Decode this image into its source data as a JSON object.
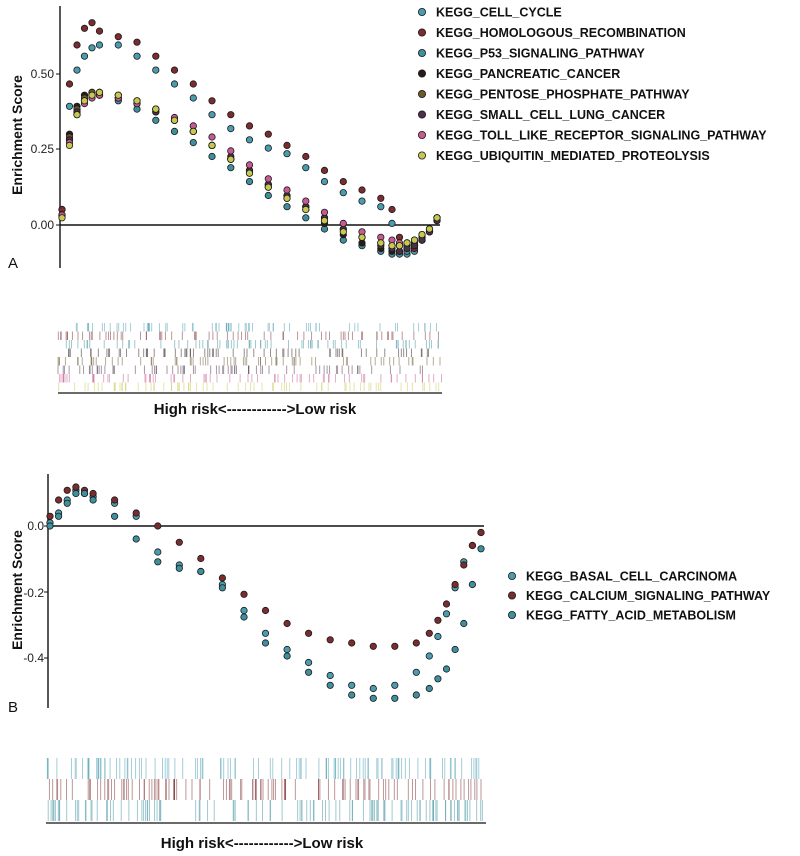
{
  "chart_data": [
    {
      "type": "scatter",
      "panel_label": "A",
      "ylabel": "Enrichment Score",
      "xlabel": "High risk<------------>Low risk",
      "yticks": [
        "0.00",
        "0.25",
        "0.50"
      ],
      "ylim": [
        -0.16,
        0.78
      ],
      "xlim": [
        0,
        100
      ],
      "grid": false,
      "zero_line": true,
      "legend_position": "top-right",
      "x": [
        0,
        2,
        4,
        6,
        8,
        10,
        15,
        20,
        25,
        30,
        35,
        40,
        45,
        50,
        55,
        60,
        65,
        70,
        75,
        80,
        85,
        88,
        90,
        92,
        94,
        96,
        98,
        100
      ],
      "series": [
        {
          "name": "KEGG_CELL_CYCLE",
          "color": "#4a9db0",
          "values": [
            0.05,
            0.42,
            0.55,
            0.6,
            0.63,
            0.64,
            0.64,
            0.6,
            0.55,
            0.5,
            0.45,
            0.39,
            0.34,
            0.3,
            0.27,
            0.25,
            0.2,
            0.15,
            0.11,
            0.08,
            0.06,
            0.0,
            -0.08,
            -0.11,
            -0.1,
            -0.06,
            -0.02,
            0.02
          ]
        },
        {
          "name": "KEGG_HOMOLOGOUS_RECOMBINATION",
          "color": "#7a2c2e",
          "values": [
            0.05,
            0.5,
            0.64,
            0.7,
            0.72,
            0.69,
            0.67,
            0.65,
            0.6,
            0.55,
            0.5,
            0.44,
            0.39,
            0.35,
            0.32,
            0.28,
            0.24,
            0.19,
            0.15,
            0.12,
            0.09,
            0.05,
            -0.05,
            -0.09,
            -0.09,
            -0.06,
            -0.03,
            0.02
          ]
        },
        {
          "name": "KEGG_P53_SIGNALING_PATHWAY",
          "color": "#3f8f9e",
          "values": [
            0.03,
            0.3,
            0.4,
            0.44,
            0.46,
            0.46,
            0.44,
            0.41,
            0.37,
            0.33,
            0.29,
            0.24,
            0.2,
            0.15,
            0.1,
            0.06,
            0.02,
            -0.02,
            -0.06,
            -0.08,
            -0.1,
            -0.11,
            -0.11,
            -0.1,
            -0.08,
            -0.06,
            -0.03,
            0.01
          ]
        },
        {
          "name": "KEGG_PANCREATIC_CANCER",
          "color": "#2b1a1a",
          "values": [
            0.03,
            0.32,
            0.42,
            0.46,
            0.47,
            0.47,
            0.45,
            0.43,
            0.4,
            0.37,
            0.33,
            0.28,
            0.23,
            0.18,
            0.13,
            0.09,
            0.05,
            0.0,
            -0.04,
            -0.07,
            -0.09,
            -0.1,
            -0.1,
            -0.09,
            -0.08,
            -0.06,
            -0.03,
            0.01
          ]
        },
        {
          "name": "KEGG_PENTOSE_PHOSPHATE_PATHWAY",
          "color": "#6b5a2e",
          "values": [
            0.03,
            0.31,
            0.41,
            0.45,
            0.47,
            0.47,
            0.46,
            0.44,
            0.41,
            0.37,
            0.33,
            0.28,
            0.23,
            0.19,
            0.14,
            0.1,
            0.06,
            0.02,
            -0.02,
            -0.05,
            -0.07,
            -0.08,
            -0.08,
            -0.08,
            -0.07,
            -0.05,
            -0.02,
            0.02
          ]
        },
        {
          "name": "KEGG_SMALL_CELL_LUNG_CANCER",
          "color": "#4a3048",
          "values": [
            0.03,
            0.3,
            0.4,
            0.44,
            0.46,
            0.46,
            0.45,
            0.43,
            0.4,
            0.37,
            0.33,
            0.28,
            0.24,
            0.19,
            0.14,
            0.1,
            0.06,
            0.02,
            -0.02,
            -0.05,
            -0.08,
            -0.09,
            -0.1,
            -0.09,
            -0.08,
            -0.06,
            -0.03,
            0.01
          ]
        },
        {
          "name": "KEGG_TOLL_LIKE_RECEPTOR_SIGNALING_PATHWAY",
          "color": "#c85a92",
          "values": [
            0.03,
            0.29,
            0.39,
            0.43,
            0.45,
            0.46,
            0.45,
            0.43,
            0.41,
            0.38,
            0.35,
            0.31,
            0.26,
            0.21,
            0.16,
            0.12,
            0.08,
            0.04,
            0.0,
            -0.03,
            -0.05,
            -0.06,
            -0.07,
            -0.07,
            -0.06,
            -0.04,
            -0.02,
            0.02
          ]
        },
        {
          "name": "KEGG_UBIQUITIN_MEDIATED_PROTEOLYSIS",
          "color": "#c8c850",
          "values": [
            0.02,
            0.28,
            0.39,
            0.44,
            0.46,
            0.47,
            0.46,
            0.44,
            0.41,
            0.37,
            0.33,
            0.28,
            0.23,
            0.18,
            0.13,
            0.09,
            0.05,
            0.01,
            -0.03,
            -0.05,
            -0.07,
            -0.08,
            -0.08,
            -0.07,
            -0.06,
            -0.04,
            -0.02,
            0.02
          ]
        }
      ]
    },
    {
      "type": "scatter",
      "panel_label": "B",
      "ylabel": "Enrichment Score",
      "xlabel": "High risk<------------>Low risk",
      "yticks": [
        "-0.4",
        "-0.2",
        "0.0"
      ],
      "ylim": [
        -0.54,
        0.18
      ],
      "xlim": [
        0,
        100
      ],
      "grid": false,
      "zero_line": true,
      "legend_position": "right",
      "x": [
        0,
        2,
        4,
        6,
        8,
        10,
        15,
        20,
        25,
        30,
        35,
        40,
        45,
        50,
        55,
        60,
        65,
        70,
        75,
        80,
        85,
        88,
        90,
        92,
        94,
        96,
        98,
        100
      ],
      "series": [
        {
          "name": "KEGG_BASAL_CELL_CARCINOMA",
          "color": "#4a9db0",
          "values": [
            0.03,
            0.06,
            0.1,
            0.13,
            0.12,
            0.11,
            0.09,
            0.05,
            -0.06,
            -0.1,
            -0.12,
            -0.16,
            -0.24,
            -0.31,
            -0.36,
            -0.4,
            -0.44,
            -0.47,
            -0.48,
            -0.47,
            -0.43,
            -0.38,
            -0.32,
            -0.25,
            -0.17,
            -0.09,
            -0.04,
            0.0
          ]
        },
        {
          "name": "KEGG_CALCIUM_SIGNALING_PATHWAY",
          "color": "#7a2c2e",
          "values": [
            0.05,
            0.1,
            0.13,
            0.14,
            0.13,
            0.12,
            0.1,
            0.06,
            0.02,
            -0.03,
            -0.08,
            -0.14,
            -0.19,
            -0.24,
            -0.28,
            -0.31,
            -0.33,
            -0.34,
            -0.35,
            -0.35,
            -0.34,
            -0.31,
            -0.27,
            -0.22,
            -0.16,
            -0.1,
            -0.04,
            0.0
          ]
        },
        {
          "name": "KEGG_FATTY_ACID_METABOLISM",
          "color": "#3f8f9e",
          "values": [
            0.02,
            0.05,
            0.09,
            0.12,
            0.12,
            0.1,
            0.05,
            -0.02,
            -0.09,
            -0.11,
            -0.12,
            -0.17,
            -0.26,
            -0.34,
            -0.38,
            -0.43,
            -0.47,
            -0.5,
            -0.51,
            -0.51,
            -0.5,
            -0.48,
            -0.45,
            -0.42,
            -0.36,
            -0.28,
            -0.16,
            -0.05
          ]
        }
      ]
    }
  ]
}
